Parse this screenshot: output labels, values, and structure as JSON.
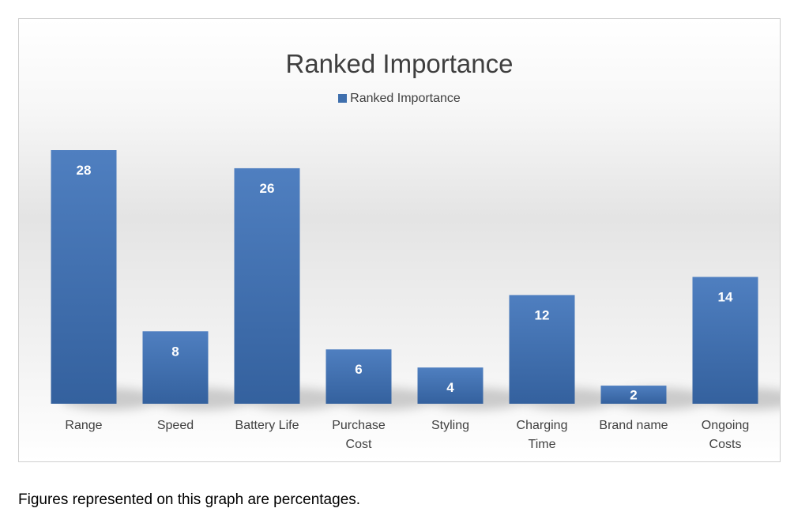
{
  "chart_data": {
    "type": "bar",
    "title": "Ranked Importance",
    "legend": [
      "Ranked Importance"
    ],
    "legend_position": "top",
    "series": [
      {
        "name": "Ranked Importance",
        "values": [
          28,
          8,
          26,
          6,
          4,
          12,
          2,
          14
        ]
      }
    ],
    "categories": [
      [
        "Range"
      ],
      [
        "Speed"
      ],
      [
        "Battery Life"
      ],
      [
        "Purchase",
        "Cost"
      ],
      [
        "Styling"
      ],
      [
        "Charging",
        "Time"
      ],
      [
        "Brand name"
      ],
      [
        "Ongoing",
        "Costs"
      ]
    ],
    "data_labels": [
      "28",
      "8",
      "26",
      "6",
      "4",
      "12",
      "2",
      "14"
    ],
    "ylim": [
      0,
      28
    ],
    "grid": false,
    "bar_color": "#3f6fad"
  },
  "footnote": "Figures represented on this graph are percentages."
}
